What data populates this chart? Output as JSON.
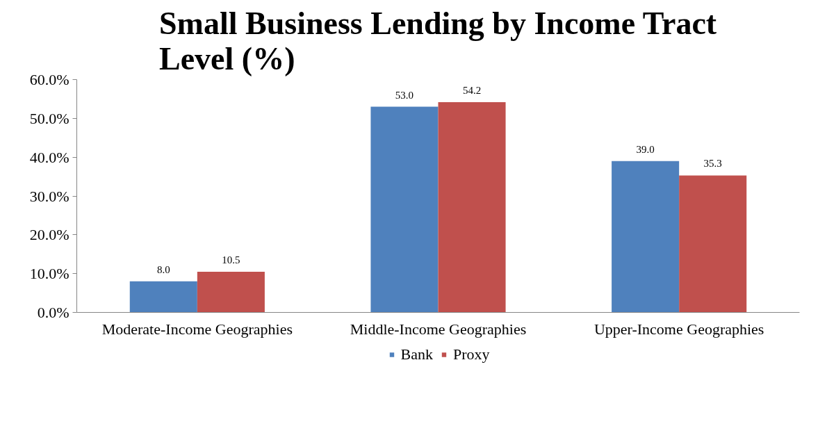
{
  "chart_data": {
    "type": "bar",
    "title": "Small Business Lending by Income Tract Level (%)",
    "categories": [
      "Moderate-Income Geographies",
      "Middle-Income Geographies",
      "Upper-Income Geographies"
    ],
    "series": [
      {
        "name": "Bank",
        "color": "#4f81bd",
        "values": [
          8.0,
          53.0,
          39.0
        ],
        "value_labels": [
          "8.0",
          "53.0",
          "39.0"
        ]
      },
      {
        "name": "Proxy",
        "color": "#c0504d",
        "values": [
          10.5,
          54.2,
          35.3
        ],
        "value_labels": [
          "10.5",
          "54.2",
          "35.3"
        ]
      }
    ],
    "ylim": [
      0,
      60
    ],
    "yticks": [
      {
        "value": 0,
        "label": "0.0%"
      },
      {
        "value": 10,
        "label": "10.0%"
      },
      {
        "value": 20,
        "label": "20.0%"
      },
      {
        "value": 30,
        "label": "30.0%"
      },
      {
        "value": 40,
        "label": "40.0%"
      },
      {
        "value": 50,
        "label": "50.0%"
      },
      {
        "value": 60,
        "label": "60.0%"
      }
    ],
    "grid": false,
    "legend": "bottom"
  }
}
